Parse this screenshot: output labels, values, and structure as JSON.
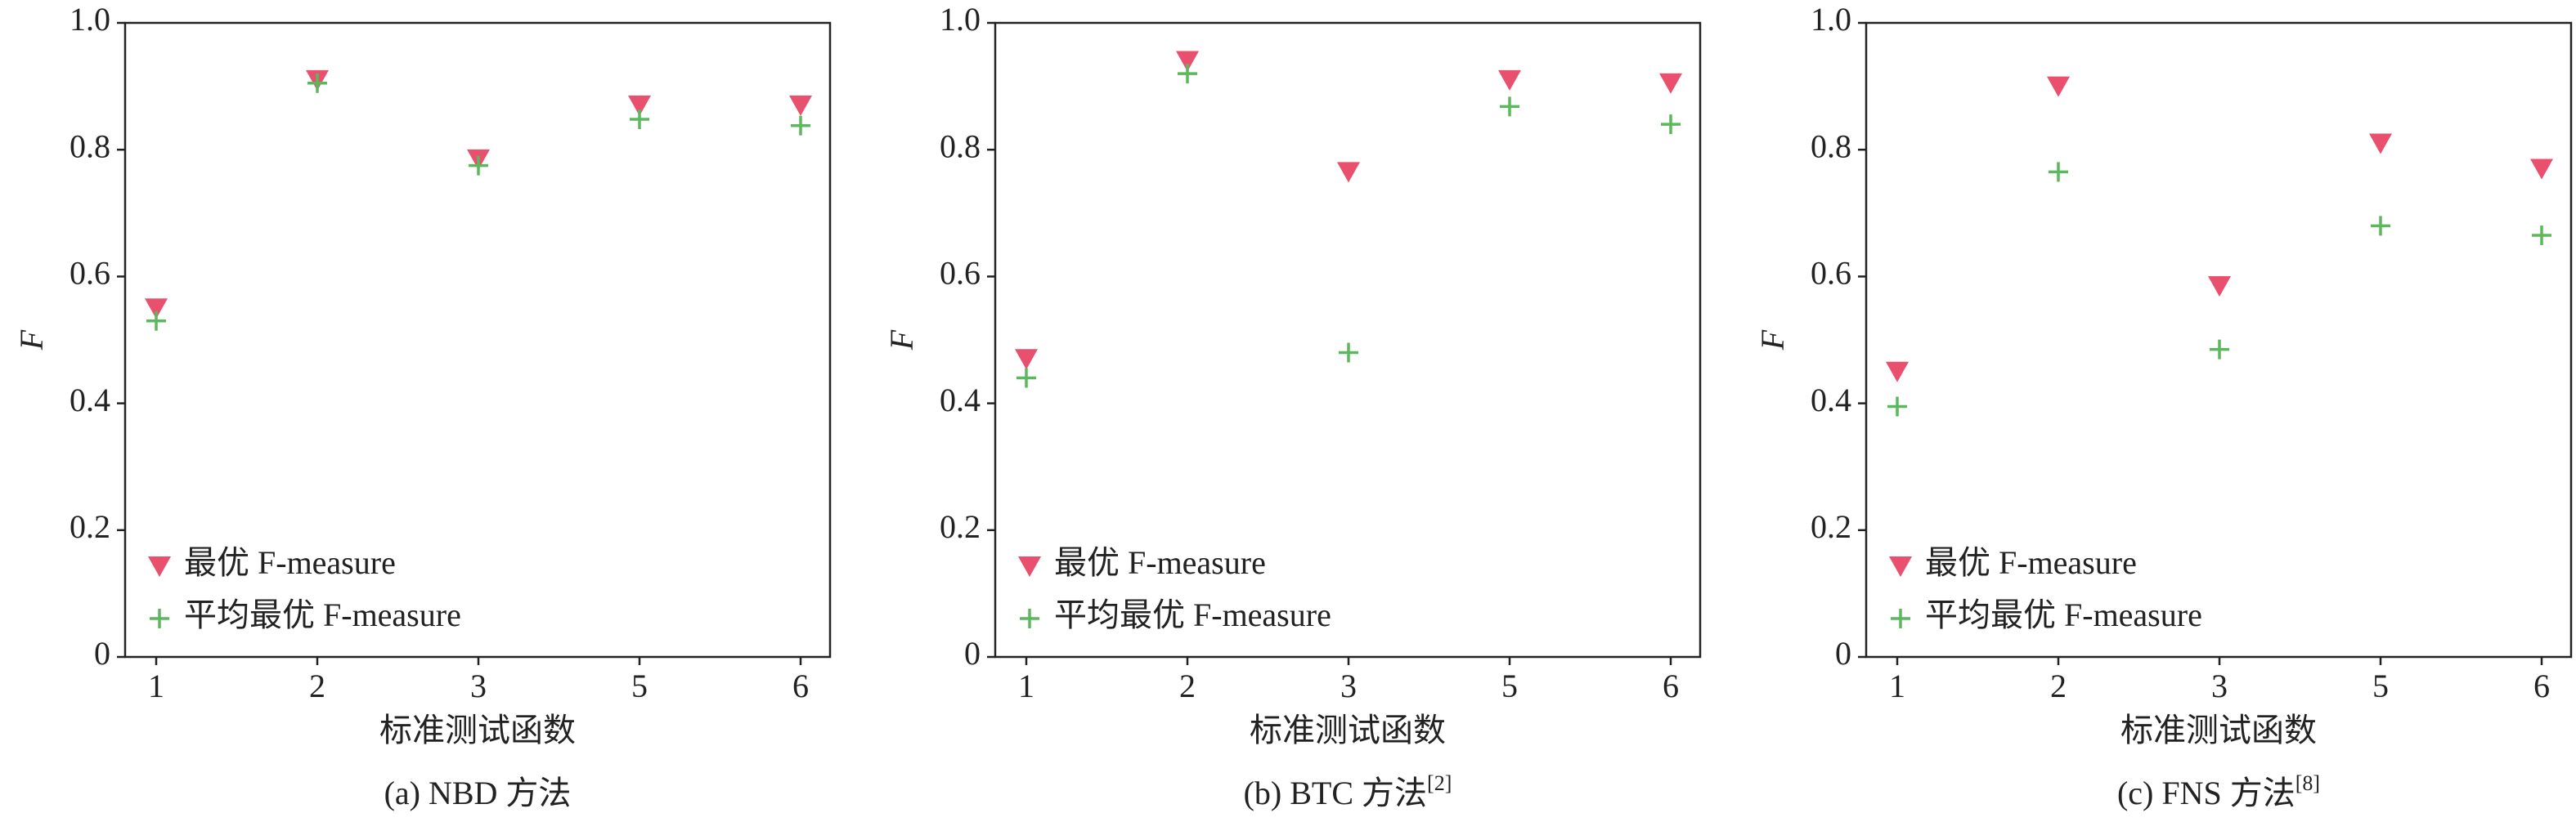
{
  "chart_data": [
    {
      "type": "scatter",
      "caption": "(a) NBD 方法",
      "x_label": "标准测试函数",
      "y_label": "F",
      "categories": [
        "1",
        "2",
        "3",
        "5",
        "6"
      ],
      "ylim": [
        0,
        1
      ],
      "yticks": [
        0,
        0.2,
        0.4,
        0.6,
        0.8,
        {
          "value": 1,
          "label": "1.0"
        }
      ],
      "legend": "lower left",
      "series": [
        {
          "name": "最优 F-measure",
          "color": "#e8506e",
          "marker": "triangle-down",
          "values": [
            0.55,
            0.91,
            0.785,
            0.87,
            0.87
          ]
        },
        {
          "name": "平均最优 F-measure",
          "color": "#5cb85c",
          "marker": "plus",
          "values": [
            0.53,
            0.905,
            0.775,
            0.848,
            0.838
          ]
        }
      ]
    },
    {
      "type": "scatter",
      "caption": "(b) BTC 方法",
      "caption_ref": "[2]",
      "x_label": "标准测试函数",
      "y_label": "F",
      "categories": [
        "1",
        "2",
        "3",
        "5",
        "6"
      ],
      "ylim": [
        0,
        1
      ],
      "yticks": [
        0,
        0.2,
        0.4,
        0.6,
        0.8,
        {
          "value": 1,
          "label": "1.0"
        }
      ],
      "legend": "lower left",
      "series": [
        {
          "name": "最优 F-measure",
          "color": "#e8506e",
          "marker": "triangle-down",
          "values": [
            0.47,
            0.94,
            0.765,
            0.91,
            0.905
          ]
        },
        {
          "name": "平均最优 F-measure",
          "color": "#5cb85c",
          "marker": "plus",
          "values": [
            0.44,
            0.92,
            0.48,
            0.868,
            0.84
          ]
        }
      ]
    },
    {
      "type": "scatter",
      "caption": "(c) FNS 方法",
      "caption_ref": "[8]",
      "x_label": "标准测试函数",
      "y_label": "F",
      "categories": [
        "1",
        "2",
        "3",
        "5",
        "6"
      ],
      "ylim": [
        0,
        1
      ],
      "yticks": [
        0,
        0.2,
        0.4,
        0.6,
        0.8,
        {
          "value": 1,
          "label": "1.0"
        }
      ],
      "legend": "lower left",
      "series": [
        {
          "name": "最优 F-measure",
          "color": "#e8506e",
          "marker": "triangle-down",
          "values": [
            0.45,
            0.9,
            0.585,
            0.81,
            0.77
          ]
        },
        {
          "name": "平均最优 F-measure",
          "color": "#5cb85c",
          "marker": "plus",
          "values": [
            0.395,
            0.765,
            0.485,
            0.68,
            0.665
          ]
        }
      ]
    }
  ]
}
